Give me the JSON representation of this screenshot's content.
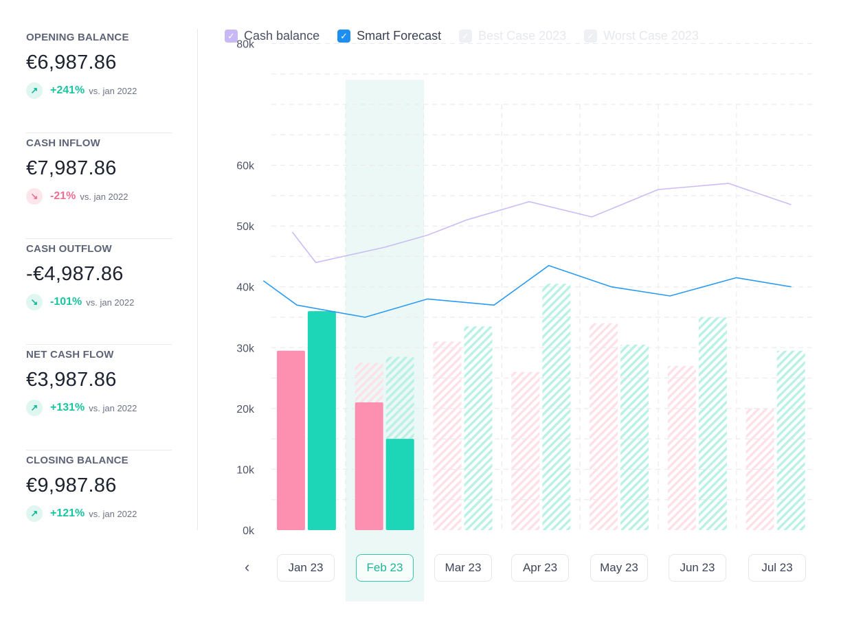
{
  "kpis": [
    {
      "label": "OPENING BALANCE",
      "value": "€6,987.86",
      "change": "+241%",
      "suffix": "vs. jan 2022",
      "arrow": "↗",
      "tone": "up"
    },
    {
      "label": "CASH INFLOW",
      "value": "€7,987.86",
      "change": "-21%",
      "suffix": "vs. jan 2022",
      "arrow": "↘",
      "tone": "bad"
    },
    {
      "label": "CASH OUTFLOW",
      "value": "-€4,987.86",
      "change": "-101%",
      "suffix": "vs. jan 2022",
      "arrow": "↘",
      "tone": "good"
    },
    {
      "label": "NET CASH FLOW",
      "value": "€3,987.86",
      "change": "+131%",
      "suffix": "vs. jan 2022",
      "arrow": "↗",
      "tone": "up"
    },
    {
      "label": "CLOSING BALANCE",
      "value": "€9,987.86",
      "change": "+121%",
      "suffix": "vs. jan 2022",
      "arrow": "↗",
      "tone": "up"
    }
  ],
  "legend": [
    {
      "label": "Cash balance",
      "checked": true,
      "enabled": true
    },
    {
      "label": "Smart Forecast",
      "checked": true,
      "enabled": true
    },
    {
      "label": "Best Case 2023",
      "checked": true,
      "enabled": false
    },
    {
      "label": "Worst Case 2023",
      "checked": true,
      "enabled": false
    }
  ],
  "nav": {
    "prev_icon": "chevron-left-icon",
    "months": [
      "Jan 23",
      "Feb 23",
      "Mar 23",
      "Apr 23",
      "May 23",
      "Jun 23",
      "Jul 23"
    ],
    "selected": "Feb 23"
  },
  "colors": {
    "outflow": "#fd8fb0",
    "inflow": "#1dd6b8",
    "cash_balance": "#cbbcf6",
    "smart_forecast": "#2a9af2",
    "highlight": "#ecf8f6"
  },
  "chart_data": {
    "type": "bar",
    "categories": [
      "Jan 23",
      "Feb 23",
      "Mar 23",
      "Apr 23",
      "May 23",
      "Jun 23",
      "Jul 23"
    ],
    "ylim": [
      0,
      80000
    ],
    "y_ticks": [
      {
        "value": 0,
        "label": "0k"
      },
      {
        "value": 10000,
        "label": "10k"
      },
      {
        "value": 20000,
        "label": "20k"
      },
      {
        "value": 30000,
        "label": "30k"
      },
      {
        "value": 40000,
        "label": "40k"
      },
      {
        "value": 50000,
        "label": "50k"
      },
      {
        "value": 60000,
        "label": "60k"
      },
      {
        "value": 80000,
        "label": "80k"
      }
    ],
    "grid": true,
    "highlighted_category": "Feb 23",
    "bar_series": [
      {
        "key": "outflow",
        "actual": [
          29500,
          21000,
          null,
          null,
          null,
          null,
          null
        ],
        "forecast": [
          null,
          27500,
          31000,
          26000,
          34000,
          27000,
          20000
        ]
      },
      {
        "key": "inflow",
        "actual": [
          36000,
          15000,
          null,
          null,
          null,
          null,
          null
        ],
        "forecast": [
          null,
          28500,
          33500,
          40500,
          30500,
          35000,
          29500
        ]
      }
    ],
    "line_series": [
      {
        "name": "Cash balance",
        "key": "cash_balance",
        "x": [
          -0.18,
          0.12,
          1.0,
          1.55,
          2.05,
          2.85,
          3.65,
          4.5,
          5.4,
          6.2
        ],
        "y": [
          49000,
          44000,
          46500,
          48500,
          51000,
          54000,
          51500,
          56000,
          57000,
          53500
        ]
      },
      {
        "name": "Smart Forecast",
        "key": "smart_forecast",
        "x": [
          -0.55,
          -0.12,
          0.75,
          1.55,
          2.4,
          3.1,
          3.9,
          4.65,
          5.5,
          6.2
        ],
        "y": [
          41000,
          37000,
          35000,
          38000,
          37000,
          43500,
          40000,
          38500,
          41500,
          40000
        ]
      }
    ]
  }
}
